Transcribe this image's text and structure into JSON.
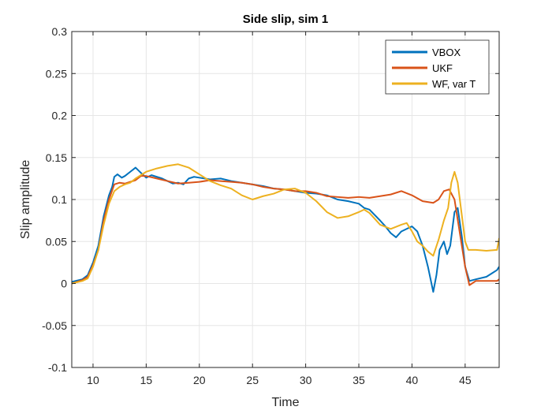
{
  "chart_data": {
    "type": "line",
    "title": "Side slip, sim 1",
    "xlabel": "Time",
    "ylabel": "Slip amplitude",
    "xlim": [
      8,
      48.2
    ],
    "ylim": [
      -0.1,
      0.3
    ],
    "xticks": [
      10,
      15,
      20,
      25,
      30,
      35,
      40,
      45
    ],
    "xtick_labels": [
      "10",
      "15",
      "20",
      "25",
      "30",
      "35",
      "40",
      "45"
    ],
    "yticks": [
      -0.1,
      -0.05,
      0,
      0.05,
      0.1,
      0.15,
      0.2,
      0.25,
      0.3
    ],
    "ytick_labels": [
      "-0.1",
      "-0.05",
      "0",
      "0.05",
      "0.1",
      "0.15",
      "0.2",
      "0.25",
      "0.3"
    ],
    "grid": true,
    "legend_position": "top-right",
    "series": [
      {
        "name": "VBOX",
        "color": "#0072BD",
        "points": [
          [
            8,
            0.002
          ],
          [
            9,
            0.005
          ],
          [
            9.5,
            0.01
          ],
          [
            10,
            0.025
          ],
          [
            10.5,
            0.045
          ],
          [
            11,
            0.08
          ],
          [
            11.5,
            0.105
          ],
          [
            11.8,
            0.115
          ],
          [
            12,
            0.127
          ],
          [
            12.3,
            0.13
          ],
          [
            12.7,
            0.126
          ],
          [
            13,
            0.128
          ],
          [
            13.5,
            0.133
          ],
          [
            14,
            0.138
          ],
          [
            14.4,
            0.133
          ],
          [
            15,
            0.126
          ],
          [
            15.5,
            0.129
          ],
          [
            16,
            0.127
          ],
          [
            16.5,
            0.125
          ],
          [
            17,
            0.122
          ],
          [
            17.5,
            0.119
          ],
          [
            18,
            0.12
          ],
          [
            18.5,
            0.118
          ],
          [
            19,
            0.125
          ],
          [
            19.5,
            0.127
          ],
          [
            20,
            0.126
          ],
          [
            21,
            0.124
          ],
          [
            22,
            0.125
          ],
          [
            23,
            0.122
          ],
          [
            24,
            0.12
          ],
          [
            25,
            0.118
          ],
          [
            26,
            0.116
          ],
          [
            27,
            0.113
          ],
          [
            28,
            0.112
          ],
          [
            29,
            0.11
          ],
          [
            30,
            0.108
          ],
          [
            31,
            0.107
          ],
          [
            32,
            0.105
          ],
          [
            33,
            0.1
          ],
          [
            34,
            0.098
          ],
          [
            35,
            0.095
          ],
          [
            35.5,
            0.09
          ],
          [
            36,
            0.088
          ],
          [
            37,
            0.075
          ],
          [
            37.5,
            0.068
          ],
          [
            38,
            0.06
          ],
          [
            38.5,
            0.055
          ],
          [
            39,
            0.062
          ],
          [
            39.5,
            0.065
          ],
          [
            40,
            0.068
          ],
          [
            40.5,
            0.062
          ],
          [
            41,
            0.045
          ],
          [
            41.5,
            0.02
          ],
          [
            42,
            -0.01
          ],
          [
            42.3,
            0.01
          ],
          [
            42.6,
            0.04
          ],
          [
            43,
            0.05
          ],
          [
            43.3,
            0.035
          ],
          [
            43.6,
            0.045
          ],
          [
            44,
            0.085
          ],
          [
            44.3,
            0.09
          ],
          [
            44.7,
            0.055
          ],
          [
            45,
            0.02
          ],
          [
            45.4,
            0.003
          ],
          [
            46,
            0.005
          ],
          [
            47,
            0.008
          ],
          [
            47.5,
            0.012
          ],
          [
            48,
            0.016
          ],
          [
            48.2,
            0.02
          ]
        ]
      },
      {
        "name": "UKF",
        "color": "#D95319",
        "points": [
          [
            8,
            0.0
          ],
          [
            9,
            0.004
          ],
          [
            9.5,
            0.008
          ],
          [
            10,
            0.022
          ],
          [
            10.5,
            0.04
          ],
          [
            11,
            0.075
          ],
          [
            11.5,
            0.1
          ],
          [
            12,
            0.118
          ],
          [
            12.5,
            0.12
          ],
          [
            13,
            0.119
          ],
          [
            13.5,
            0.121
          ],
          [
            14,
            0.123
          ],
          [
            14.5,
            0.128
          ],
          [
            15,
            0.128
          ],
          [
            16,
            0.125
          ],
          [
            17,
            0.122
          ],
          [
            18,
            0.119
          ],
          [
            19,
            0.12
          ],
          [
            20,
            0.121
          ],
          [
            21,
            0.123
          ],
          [
            22,
            0.122
          ],
          [
            23,
            0.121
          ],
          [
            24,
            0.12
          ],
          [
            25,
            0.118
          ],
          [
            26,
            0.115
          ],
          [
            27,
            0.113
          ],
          [
            28,
            0.112
          ],
          [
            29,
            0.11
          ],
          [
            30,
            0.11
          ],
          [
            31,
            0.108
          ],
          [
            32,
            0.104
          ],
          [
            33,
            0.103
          ],
          [
            34,
            0.102
          ],
          [
            35,
            0.103
          ],
          [
            36,
            0.102
          ],
          [
            37,
            0.104
          ],
          [
            38,
            0.106
          ],
          [
            39,
            0.11
          ],
          [
            40,
            0.105
          ],
          [
            41,
            0.098
          ],
          [
            42,
            0.096
          ],
          [
            42.5,
            0.1
          ],
          [
            43,
            0.11
          ],
          [
            43.5,
            0.112
          ],
          [
            44,
            0.1
          ],
          [
            44.5,
            0.06
          ],
          [
            45,
            0.02
          ],
          [
            45.4,
            -0.002
          ],
          [
            46,
            0.003
          ],
          [
            47,
            0.003
          ],
          [
            48,
            0.003
          ],
          [
            48.2,
            0.005
          ]
        ]
      },
      {
        "name": "WF, var T",
        "color": "#EDB120",
        "points": [
          [
            8,
            0.0
          ],
          [
            9,
            0.003
          ],
          [
            9.5,
            0.006
          ],
          [
            10,
            0.02
          ],
          [
            10.5,
            0.04
          ],
          [
            11,
            0.07
          ],
          [
            11.5,
            0.095
          ],
          [
            12,
            0.11
          ],
          [
            12.5,
            0.115
          ],
          [
            13,
            0.118
          ],
          [
            13.5,
            0.12
          ],
          [
            14,
            0.125
          ],
          [
            15,
            0.133
          ],
          [
            16,
            0.137
          ],
          [
            17,
            0.14
          ],
          [
            18,
            0.142
          ],
          [
            19,
            0.138
          ],
          [
            20,
            0.13
          ],
          [
            21,
            0.122
          ],
          [
            22,
            0.117
          ],
          [
            23,
            0.113
          ],
          [
            24,
            0.105
          ],
          [
            25,
            0.1
          ],
          [
            26,
            0.104
          ],
          [
            27,
            0.107
          ],
          [
            28,
            0.112
          ],
          [
            29,
            0.113
          ],
          [
            30,
            0.108
          ],
          [
            31,
            0.098
          ],
          [
            32,
            0.085
          ],
          [
            33,
            0.078
          ],
          [
            34,
            0.08
          ],
          [
            35,
            0.085
          ],
          [
            35.5,
            0.088
          ],
          [
            36,
            0.084
          ],
          [
            37,
            0.07
          ],
          [
            38,
            0.065
          ],
          [
            39,
            0.07
          ],
          [
            39.5,
            0.072
          ],
          [
            40,
            0.062
          ],
          [
            40.5,
            0.05
          ],
          [
            41,
            0.045
          ],
          [
            41.5,
            0.038
          ],
          [
            42,
            0.033
          ],
          [
            42.5,
            0.052
          ],
          [
            43,
            0.075
          ],
          [
            43.4,
            0.09
          ],
          [
            43.7,
            0.12
          ],
          [
            44,
            0.133
          ],
          [
            44.3,
            0.12
          ],
          [
            44.6,
            0.09
          ],
          [
            45,
            0.05
          ],
          [
            45.3,
            0.04
          ],
          [
            46,
            0.04
          ],
          [
            47,
            0.039
          ],
          [
            48,
            0.04
          ],
          [
            48.2,
            0.054
          ]
        ]
      }
    ]
  }
}
